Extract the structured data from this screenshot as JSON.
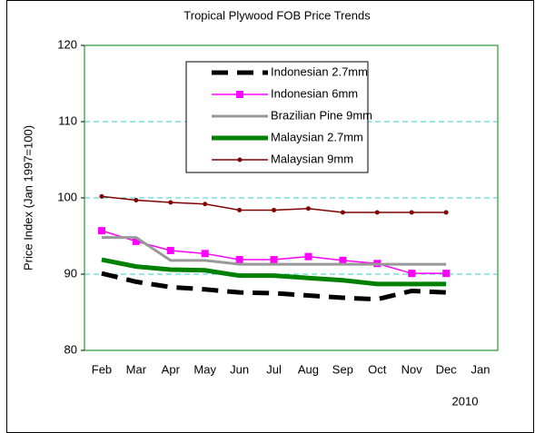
{
  "chart_data": {
    "type": "line",
    "title": "Tropical Plywood FOB Price Trends",
    "y_label": "Price Index (Jan 1997=100)",
    "annotation": "2010",
    "categories": [
      "Feb",
      "Mar",
      "Apr",
      "May",
      "Jun",
      "Jul",
      "Aug",
      "Sep",
      "Oct",
      "Nov",
      "Dec",
      "Jan"
    ],
    "ylim": [
      80,
      120
    ],
    "yticks": [
      80,
      90,
      100,
      110,
      120
    ],
    "grid": true,
    "series": [
      {
        "name": "Indonesian 2.7mm",
        "color": "#000000",
        "width": 5,
        "dash": true,
        "marker": "none",
        "values": [
          90.1,
          89.0,
          88.3,
          88.0,
          87.6,
          87.5,
          87.2,
          86.9,
          86.7,
          87.8,
          87.6,
          null
        ]
      },
      {
        "name": "Indonesian 6mm",
        "color": "#ff00ff",
        "width": 1.5,
        "dash": false,
        "marker": "square",
        "values": [
          95.7,
          94.3,
          93.1,
          92.7,
          91.9,
          91.9,
          92.3,
          91.8,
          91.4,
          90.1,
          90.1,
          null
        ]
      },
      {
        "name": "Brazilian Pine 9mm",
        "color": "#999999",
        "width": 3,
        "dash": false,
        "marker": "none",
        "values": [
          94.8,
          94.8,
          91.8,
          91.8,
          91.3,
          91.3,
          91.3,
          91.3,
          91.3,
          91.3,
          91.3,
          null
        ]
      },
      {
        "name": "Malaysian 2.7mm",
        "color": "#008000",
        "width": 5,
        "dash": false,
        "marker": "none",
        "values": [
          91.9,
          91.0,
          90.6,
          90.5,
          89.8,
          89.8,
          89.5,
          89.2,
          88.7,
          88.7,
          88.7,
          null
        ]
      },
      {
        "name": "Malaysian 9mm",
        "color": "#800000",
        "width": 1.5,
        "dash": false,
        "marker": "dot",
        "values": [
          100.2,
          99.7,
          99.4,
          99.2,
          98.4,
          98.4,
          98.6,
          98.1,
          98.1,
          98.1,
          98.1,
          null
        ]
      }
    ]
  }
}
